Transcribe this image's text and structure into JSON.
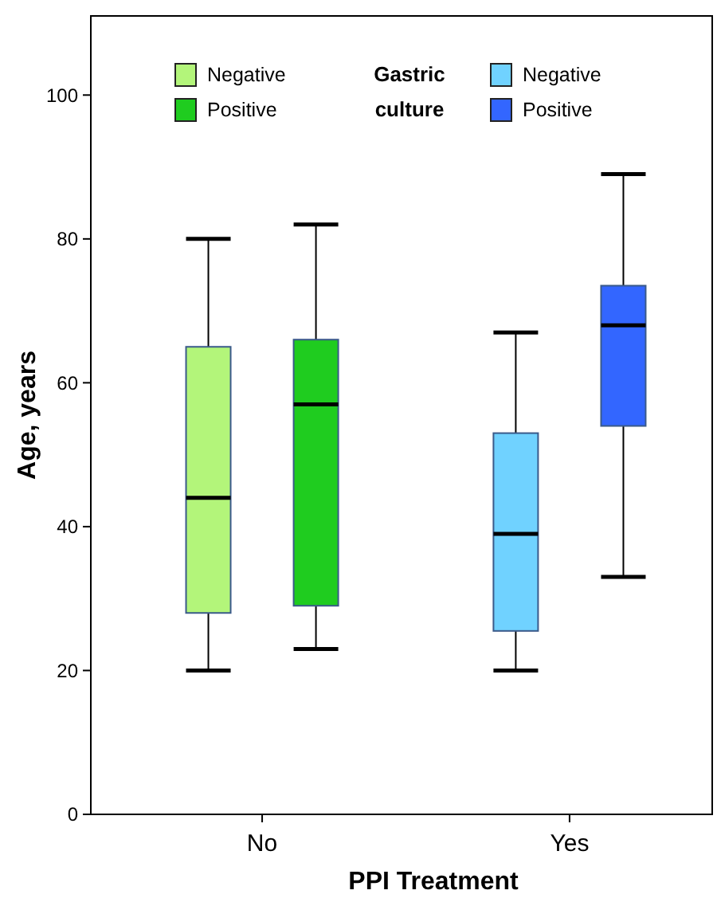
{
  "chart_data": {
    "type": "box",
    "xlabel": "PPI Treatment",
    "ylabel": "Age, years",
    "legend_title": "Gastric culture",
    "legend": "top",
    "categories": [
      "No",
      "Yes"
    ],
    "ylim": [
      0,
      111
    ],
    "yticks": [
      0,
      20,
      40,
      60,
      80,
      100
    ],
    "series": [
      {
        "name": "Negative",
        "color": "#b3f57a",
        "boxes": [
          {
            "low": 20,
            "q1": 28,
            "median": 44,
            "q3": 65,
            "high": 80
          },
          null
        ]
      },
      {
        "name": "Positive",
        "color": "#1fcc1f",
        "boxes": [
          {
            "low": 23,
            "q1": 29,
            "median": 57,
            "q3": 66,
            "high": 82
          },
          null
        ]
      },
      {
        "name": "Negative",
        "color": "#70d2ff",
        "boxes": [
          null,
          {
            "low": 20,
            "q1": 25.5,
            "median": 39,
            "q3": 53,
            "high": 67
          }
        ]
      },
      {
        "name": "Positive",
        "color": "#3366ff",
        "boxes": [
          null,
          {
            "low": 33,
            "q1": 54,
            "median": 68,
            "q3": 73.5,
            "high": 89
          }
        ]
      }
    ]
  }
}
